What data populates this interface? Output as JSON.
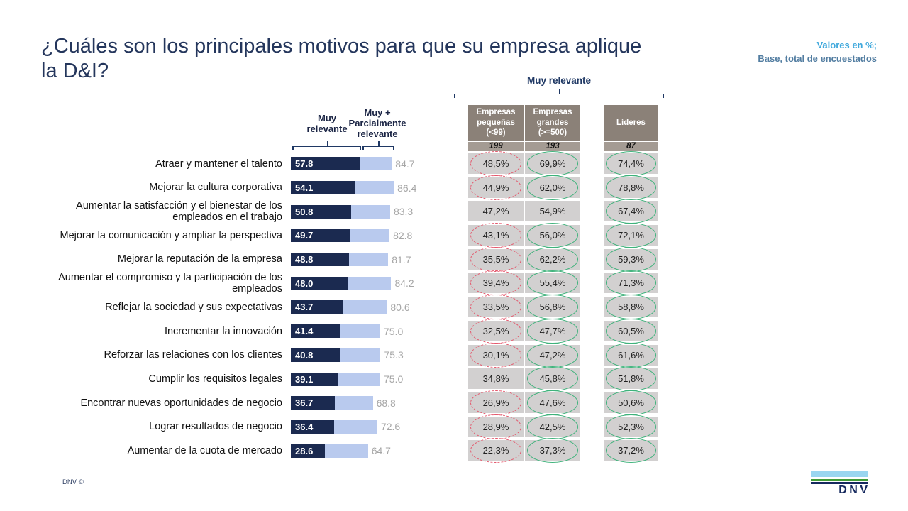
{
  "slide": {
    "title": "¿Cuáles son los principales motivos para que su empresa aplique la D&I?",
    "note_line1": "Valores en %;",
    "note_line2": "Base, total de encuestados",
    "footer": "DNV ©",
    "logo_text": "DNV"
  },
  "colors": {
    "title_navy": "#24365c",
    "bracket_navy": "#1f3864",
    "bar_dark": "#1b2a50",
    "bar_light": "#b9caee",
    "bar_total_gray": "#a6a6a6",
    "note_light_blue": "#3fa8dc",
    "note_steel_blue": "#527da1",
    "table_header_bg": "#8b8178",
    "table_base_bg": "#a49b93",
    "table_cell_bg": "#d2d0d0",
    "mark_red": "#e4566b",
    "mark_green": "#3fb27b",
    "logo_light_blue": "#9ad6f0",
    "logo_green": "#3f9c35",
    "logo_navy": "#16295e"
  },
  "chart_data": [
    {
      "type": "bar",
      "orientation": "horizontal",
      "xlim": [
        0,
        100
      ],
      "legend": [
        "Muy relevante",
        "Muy + Parcialmente relevante"
      ],
      "categories": [
        "Atraer y mantener el talento",
        "Mejorar la cultura corporativa",
        "Aumentar la satisfacción y el bienestar de los empleados en el trabajo",
        "Mejorar la comunicación y ampliar la perspectiva",
        "Mejorar la reputación de la empresa",
        "Aumentar el compromiso y la participación de los empleados",
        "Reflejar la sociedad y sus expectativas",
        "Incrementar la innovación",
        "Reforzar las relaciones con los clientes",
        "Cumplir los requisitos legales",
        "Encontrar nuevas oportunidades de negocio",
        "Lograr resultados de negocio",
        "Aumentar de la cuota de mercado"
      ],
      "series": [
        {
          "name": "Muy relevante",
          "values": [
            57.8,
            54.1,
            50.8,
            49.7,
            48.8,
            48.0,
            43.7,
            41.4,
            40.8,
            39.1,
            36.7,
            36.4,
            28.6
          ]
        },
        {
          "name": "Muy + Parcialmente relevante",
          "values": [
            84.7,
            86.4,
            83.3,
            82.8,
            81.7,
            84.2,
            80.6,
            75.0,
            75.3,
            75.0,
            68.8,
            72.6,
            64.7
          ]
        }
      ]
    },
    {
      "type": "table",
      "title": "Muy relevante",
      "columns": [
        {
          "label": "Empresas pequeñas (<99)",
          "base": "199"
        },
        {
          "label": "Empresas grandes (>=500)",
          "base": "193"
        },
        {
          "label": "Líderes",
          "base": "87"
        }
      ],
      "rows": [
        [
          {
            "value": "48,5%",
            "mark": "red"
          },
          {
            "value": "69,9%",
            "mark": "green"
          },
          {
            "value": "74,4%",
            "mark": "green"
          }
        ],
        [
          {
            "value": "44,9%",
            "mark": "red"
          },
          {
            "value": "62,0%",
            "mark": "green"
          },
          {
            "value": "78,8%",
            "mark": "green"
          }
        ],
        [
          {
            "value": "47,2%",
            "mark": "none"
          },
          {
            "value": "54,9%",
            "mark": "none"
          },
          {
            "value": "67,4%",
            "mark": "green"
          }
        ],
        [
          {
            "value": "43,1%",
            "mark": "red"
          },
          {
            "value": "56,0%",
            "mark": "green"
          },
          {
            "value": "72,1%",
            "mark": "green"
          }
        ],
        [
          {
            "value": "35,5%",
            "mark": "red"
          },
          {
            "value": "62,2%",
            "mark": "green"
          },
          {
            "value": "59,3%",
            "mark": "green"
          }
        ],
        [
          {
            "value": "39,4%",
            "mark": "red"
          },
          {
            "value": "55,4%",
            "mark": "green"
          },
          {
            "value": "71,3%",
            "mark": "green"
          }
        ],
        [
          {
            "value": "33,5%",
            "mark": "red"
          },
          {
            "value": "56,8%",
            "mark": "green"
          },
          {
            "value": "58,8%",
            "mark": "green"
          }
        ],
        [
          {
            "value": "32,5%",
            "mark": "red"
          },
          {
            "value": "47,7%",
            "mark": "green"
          },
          {
            "value": "60,5%",
            "mark": "green"
          }
        ],
        [
          {
            "value": "30,1%",
            "mark": "red"
          },
          {
            "value": "47,2%",
            "mark": "green"
          },
          {
            "value": "61,6%",
            "mark": "green"
          }
        ],
        [
          {
            "value": "34,8%",
            "mark": "none"
          },
          {
            "value": "45,8%",
            "mark": "green"
          },
          {
            "value": "51,8%",
            "mark": "green"
          }
        ],
        [
          {
            "value": "26,9%",
            "mark": "red"
          },
          {
            "value": "47,6%",
            "mark": "green"
          },
          {
            "value": "50,6%",
            "mark": "green"
          }
        ],
        [
          {
            "value": "28,9%",
            "mark": "red"
          },
          {
            "value": "42,5%",
            "mark": "green"
          },
          {
            "value": "52,3%",
            "mark": "green"
          }
        ],
        [
          {
            "value": "22,3%",
            "mark": "red"
          },
          {
            "value": "37,3%",
            "mark": "green"
          },
          {
            "value": "37,2%",
            "mark": "green"
          }
        ]
      ]
    }
  ]
}
